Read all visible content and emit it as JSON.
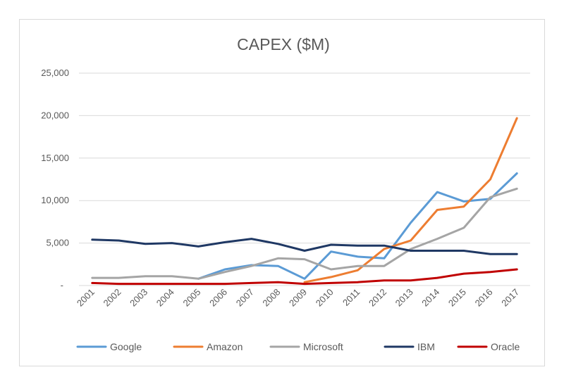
{
  "chart_data": {
    "type": "line",
    "title": "CAPEX ($M)",
    "xlabel": "",
    "ylabel": "",
    "categories": [
      "2001",
      "2002",
      "2003",
      "2004",
      "2005",
      "2006",
      "2007",
      "2008",
      "2009",
      "2010",
      "2011",
      "2012",
      "2013",
      "2014",
      "2015",
      "2016",
      "2017"
    ],
    "y_ticks": [
      "-",
      "5,000",
      "10,000",
      "15,000",
      "20,000",
      "25,000"
    ],
    "ylim": [
      0,
      25000
    ],
    "grid": true,
    "legend_position": "bottom",
    "series": [
      {
        "name": "Google",
        "color": "#5b9bd5",
        "values": [
          null,
          null,
          null,
          null,
          800,
          1900,
          2400,
          2300,
          800,
          4000,
          3400,
          3200,
          7400,
          11000,
          9900,
          10200,
          13200
        ]
      },
      {
        "name": "Amazon",
        "color": "#ed7d31",
        "values": [
          null,
          null,
          null,
          null,
          null,
          null,
          null,
          null,
          400,
          1000,
          1800,
          4300,
          5300,
          8900,
          9300,
          12500,
          19700
        ]
      },
      {
        "name": "Microsoft",
        "color": "#a5a5a5",
        "values": [
          900,
          900,
          1100,
          1100,
          800,
          1600,
          2300,
          3200,
          3100,
          1900,
          2300,
          2300,
          4300,
          5500,
          6800,
          10400,
          11400
        ]
      },
      {
        "name": "IBM",
        "color": "#1f3864",
        "values": [
          5400,
          5300,
          4900,
          5000,
          4600,
          5100,
          5500,
          4900,
          4100,
          4800,
          4700,
          4700,
          4100,
          4100,
          4100,
          3700,
          3700
        ]
      },
      {
        "name": "Oracle",
        "color": "#c00000",
        "values": [
          300,
          200,
          200,
          200,
          200,
          200,
          300,
          400,
          200,
          300,
          400,
          600,
          600,
          900,
          1400,
          1600,
          1900
        ]
      }
    ]
  }
}
